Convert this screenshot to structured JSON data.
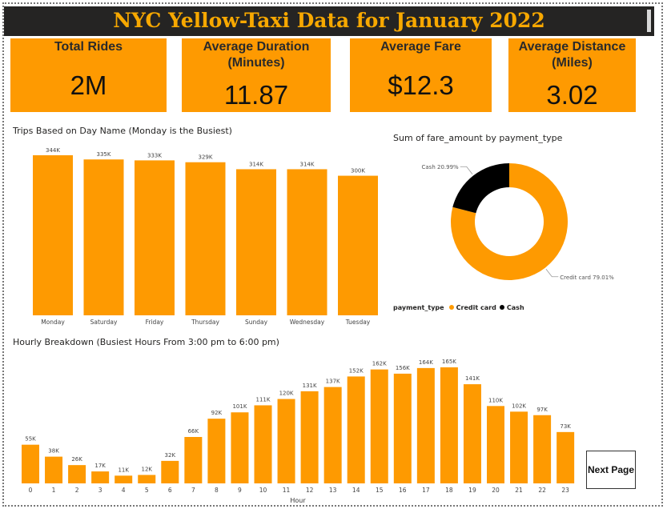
{
  "header": {
    "title": "NYC Yellow-Taxi Data for January 2022"
  },
  "kpis": [
    {
      "label": "Total Rides",
      "value": "2M"
    },
    {
      "label": "Average Duration (Minutes)",
      "value": "11.87"
    },
    {
      "label": "Average Fare",
      "value": "$12.3"
    },
    {
      "label": "Average Distance (Miles)",
      "value": "3.02"
    }
  ],
  "buttons": {
    "next_page": "Next Page"
  },
  "colors": {
    "accent": "#fe9a01",
    "dark": "#000000",
    "title_text": "#f7a800"
  },
  "chart_data": [
    {
      "type": "bar",
      "title": "Trips Based on Day Name (Monday is the Busiest)",
      "categories": [
        "Monday",
        "Saturday",
        "Friday",
        "Thursday",
        "Sunday",
        "Wednesday",
        "Tuesday"
      ],
      "values": [
        344,
        335,
        333,
        329,
        314,
        314,
        300
      ],
      "data_labels": [
        "344K",
        "335K",
        "333K",
        "329K",
        "314K",
        "314K",
        "300K"
      ],
      "ylim": [
        0,
        344
      ],
      "grid": false
    },
    {
      "type": "pie",
      "title": "Sum of fare_amount by payment_type",
      "legend_title": "payment_type",
      "legend_position": "bottom-left",
      "categories": [
        "Credit card",
        "Cash"
      ],
      "values": [
        79.01,
        20.99
      ],
      "data_labels": [
        "Credit card 79.01%",
        "Cash 20.99%"
      ],
      "colors": [
        "#fe9a01",
        "#000000"
      ]
    },
    {
      "type": "bar",
      "title": "Hourly Breakdown (Busiest Hours From 3:00 pm to 6:00 pm)",
      "xlabel": "Hour",
      "categories": [
        "0",
        "1",
        "2",
        "3",
        "4",
        "5",
        "6",
        "7",
        "8",
        "9",
        "10",
        "11",
        "12",
        "13",
        "14",
        "15",
        "16",
        "17",
        "18",
        "19",
        "20",
        "21",
        "22",
        "23"
      ],
      "values": [
        55,
        38,
        26,
        17,
        11,
        12,
        32,
        66,
        92,
        101,
        111,
        120,
        131,
        137,
        152,
        162,
        156,
        164,
        165,
        141,
        110,
        102,
        97,
        73
      ],
      "data_labels": [
        "55K",
        "38K",
        "26K",
        "17K",
        "11K",
        "12K",
        "32K",
        "66K",
        "92K",
        "101K",
        "111K",
        "120K",
        "131K",
        "137K",
        "152K",
        "162K",
        "156K",
        "164K",
        "165K",
        "141K",
        "110K",
        "102K",
        "97K",
        "73K"
      ],
      "ylim": [
        0,
        165
      ],
      "grid": false
    }
  ]
}
